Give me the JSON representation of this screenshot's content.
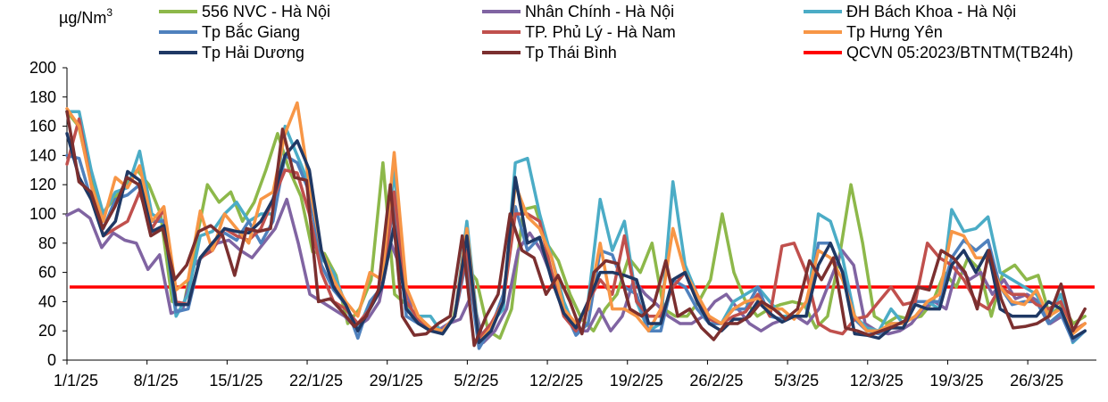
{
  "chart_data": {
    "type": "line",
    "ylabel": "µg/Nm",
    "ylabel_sup": "3",
    "ylim": [
      0,
      200
    ],
    "yticks": [
      0,
      20,
      40,
      60,
      80,
      100,
      120,
      140,
      160,
      180,
      200
    ],
    "x_start": "2025-01-01",
    "x_end": "2025-04-01",
    "xtick_labels": [
      "1/1/25",
      "8/1/25",
      "15/1/25",
      "22/1/25",
      "29/1/25",
      "5/2/25",
      "12/2/25",
      "19/2/25",
      "26/2/25",
      "5/3/25",
      "12/3/25",
      "19/3/25",
      "26/3/25"
    ],
    "grid": false,
    "legend_position": "top",
    "reference_line": {
      "name": "QCVN 05:2023/BTNTM(TB24h)",
      "value": 50,
      "color": "#ff0000"
    },
    "series": [
      {
        "name": "556 NVC - Hà Nội",
        "color": "#8db84a",
        "values": [
          170,
          160,
          125,
          100,
          110,
          120,
          130,
          120,
          100,
          40,
          38,
          80,
          120,
          108,
          115,
          95,
          108,
          130,
          155,
          130,
          112,
          74,
          73,
          58,
          25,
          35,
          55,
          135,
          45,
          38,
          30,
          20,
          20,
          28,
          65,
          55,
          20,
          15,
          35,
          103,
          105,
          80,
          68,
          45,
          28,
          20,
          35,
          45,
          70,
          60,
          80,
          35,
          30,
          30,
          40,
          55,
          100,
          60,
          40,
          30,
          35,
          38,
          40,
          38,
          22,
          30,
          70,
          120,
          80,
          30,
          25,
          30,
          28,
          30,
          40,
          60,
          50,
          70,
          62,
          30,
          60,
          65,
          55,
          58,
          30,
          38,
          25,
          30
        ]
      },
      {
        "name": "Nhân Chính - Hà Nội",
        "color": "#8064a2",
        "values": [
          99,
          103,
          97,
          77,
          87,
          82,
          80,
          62,
          72,
          32,
          35,
          65,
          73,
          80,
          82,
          75,
          70,
          80,
          90,
          110,
          80,
          45,
          40,
          35,
          30,
          22,
          28,
          40,
          80,
          60,
          28,
          22,
          20,
          25,
          28,
          45,
          12,
          20,
          35,
          75,
          87,
          75,
          55,
          35,
          20,
          20,
          35,
          20,
          30,
          55,
          45,
          38,
          30,
          25,
          25,
          30,
          40,
          45,
          35,
          25,
          20,
          25,
          28,
          30,
          25,
          35,
          55,
          75,
          65,
          25,
          20,
          18,
          20,
          25,
          35,
          40,
          35,
          65,
          55,
          60,
          45,
          55,
          42,
          45,
          40,
          25,
          30,
          15,
          20
        ]
      },
      {
        "name": "ĐH Bách Khoa - Hà Nội",
        "color": "#4bacc6",
        "values": [
          170,
          170,
          130,
          100,
          115,
          118,
          143,
          100,
          95,
          30,
          45,
          85,
          88,
          100,
          108,
          95,
          100,
          100,
          160,
          140,
          120,
          70,
          60,
          38,
          20,
          40,
          50,
          130,
          35,
          30,
          30,
          18,
          30,
          95,
          15,
          25,
          35,
          135,
          138,
          100,
          70,
          40,
          20,
          40,
          110,
          75,
          95,
          40,
          20,
          25,
          122,
          65,
          45,
          25,
          25,
          40,
          45,
          50,
          40,
          30,
          30,
          30,
          100,
          95,
          70,
          30,
          22,
          20,
          35,
          25,
          30,
          40,
          35,
          103,
          88,
          90,
          98,
          60,
          55,
          50,
          45,
          30,
          45,
          12,
          20
        ]
      },
      {
        "name": "Tp Bắc Giang",
        "color": "#4f81bd",
        "values": [
          140,
          138,
          110,
          90,
          110,
          113,
          120,
          95,
          95,
          33,
          35,
          70,
          80,
          87,
          82,
          95,
          80,
          95,
          140,
          135,
          115,
          65,
          48,
          38,
          15,
          40,
          50,
          110,
          30,
          25,
          22,
          18,
          30,
          70,
          8,
          22,
          45,
          105,
          75,
          84,
          55,
          35,
          17,
          25,
          75,
          72,
          50,
          45,
          20,
          20,
          55,
          50,
          35,
          25,
          25,
          35,
          35,
          50,
          30,
          28,
          30,
          30,
          80,
          80,
          60,
          28,
          20,
          18,
          25,
          25,
          40,
          40,
          40,
          70,
          82,
          75,
          82,
          50,
          38,
          40,
          40,
          25,
          32,
          13,
          20
        ]
      },
      {
        "name": "TP. Phủ Lý - Hà Nam",
        "color": "#c0504d",
        "values": [
          134,
          165,
          120,
          85,
          90,
          95,
          115,
          90,
          103,
          40,
          38,
          70,
          75,
          90,
          85,
          82,
          90,
          110,
          130,
          128,
          100,
          60,
          40,
          35,
          25,
          35,
          50,
          115,
          40,
          28,
          22,
          20,
          30,
          75,
          15,
          25,
          40,
          100,
          100,
          95,
          60,
          30,
          20,
          40,
          55,
          45,
          85,
          40,
          30,
          30,
          50,
          60,
          40,
          28,
          25,
          30,
          33,
          45,
          30,
          78,
          80,
          60,
          25,
          20,
          18,
          28,
          30,
          40,
          50,
          38,
          40,
          80,
          70,
          65,
          55,
          40,
          35,
          50,
          45,
          45,
          38,
          35,
          40,
          20,
          25
        ]
      },
      {
        "name": "Tp Hưng Yên",
        "color": "#f79646",
        "values": [
          172,
          160,
          120,
          95,
          125,
          118,
          133,
          95,
          105,
          48,
          55,
          102,
          75,
          100,
          90,
          80,
          110,
          115,
          155,
          176,
          120,
          75,
          55,
          40,
          30,
          60,
          55,
          142,
          50,
          30,
          22,
          20,
          30,
          90,
          12,
          22,
          40,
          120,
          98,
          90,
          70,
          35,
          25,
          35,
          80,
          35,
          35,
          30,
          20,
          35,
          90,
          60,
          45,
          30,
          25,
          35,
          40,
          42,
          35,
          35,
          28,
          40,
          75,
          70,
          55,
          30,
          20,
          20,
          25,
          25,
          30,
          40,
          45,
          88,
          85,
          70,
          70,
          50,
          40,
          38,
          48,
          30,
          35,
          18,
          25
        ]
      },
      {
        "name": "Tp Hải Dương",
        "color": "#1f3864",
        "values": [
          155,
          125,
          110,
          85,
          95,
          129,
          123,
          88,
          92,
          38,
          38,
          70,
          80,
          90,
          88,
          87,
          95,
          110,
          140,
          150,
          130,
          75,
          50,
          38,
          20,
          35,
          50,
          92,
          35,
          25,
          20,
          18,
          30,
          85,
          12,
          20,
          40,
          125,
          80,
          84,
          55,
          32,
          22,
          40,
          60,
          60,
          58,
          55,
          25,
          25,
          55,
          60,
          40,
          25,
          20,
          28,
          28,
          40,
          32,
          26,
          30,
          30,
          65,
          80,
          60,
          18,
          17,
          15,
          22,
          22,
          38,
          35,
          35,
          65,
          75,
          60,
          75,
          35,
          30,
          30,
          30,
          40,
          35,
          15,
          20
        ]
      },
      {
        "name": "Tp Thái Bình",
        "color": "#7b2f2f",
        "values": [
          170,
          122,
          115,
          90,
          105,
          125,
          120,
          85,
          90,
          55,
          65,
          88,
          92,
          85,
          58,
          90,
          88,
          90,
          158,
          125,
          123,
          40,
          42,
          33,
          23,
          30,
          48,
          120,
          30,
          17,
          18,
          25,
          30,
          85,
          10,
          30,
          45,
          100,
          75,
          70,
          45,
          58,
          40,
          18,
          60,
          68,
          66,
          35,
          30,
          38,
          68,
          30,
          35,
          22,
          14,
          25,
          25,
          30,
          40,
          35,
          28,
          35,
          68,
          55,
          70,
          22,
          20,
          17,
          20,
          23,
          27,
          50,
          48,
          75,
          70,
          60,
          35,
          75,
          42,
          22,
          23,
          25,
          30,
          52,
          20,
          35
        ]
      }
    ]
  }
}
